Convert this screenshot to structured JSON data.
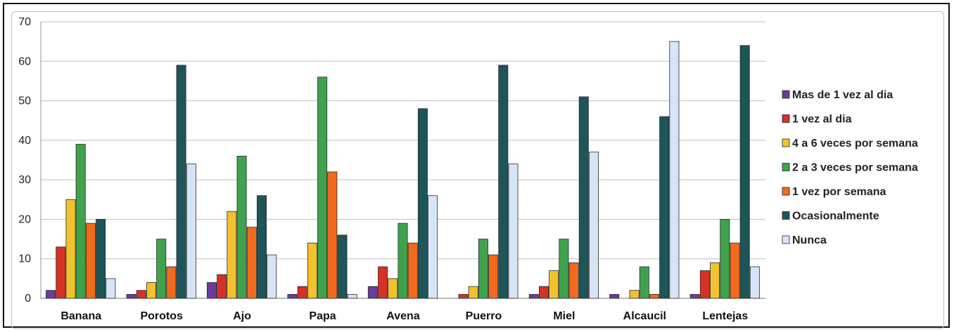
{
  "chart_data": {
    "type": "bar",
    "categories": [
      "Banana",
      "Porotos",
      "Ajo",
      "Papa",
      "Avena",
      "Puerro",
      "Miel",
      "Alcaucil",
      "Lentejas"
    ],
    "series": [
      {
        "name": "Mas de 1 vez al dia",
        "color": "#6a3d9a",
        "values": [
          2,
          1,
          4,
          1,
          3,
          0,
          1,
          1,
          1
        ]
      },
      {
        "name": "1 vez al dia",
        "color": "#d73027",
        "values": [
          13,
          2,
          6,
          3,
          8,
          1,
          3,
          0,
          7
        ]
      },
      {
        "name": "4 a 6 veces por semana",
        "color": "#f2c12e",
        "values": [
          25,
          4,
          22,
          14,
          5,
          3,
          7,
          2,
          9
        ]
      },
      {
        "name": "2 a 3 veces por semana",
        "color": "#3fa34d",
        "values": [
          39,
          15,
          36,
          56,
          19,
          15,
          15,
          8,
          20
        ]
      },
      {
        "name": "1 vez por semana",
        "color": "#f26a1b",
        "values": [
          19,
          8,
          18,
          32,
          14,
          11,
          9,
          1,
          14
        ]
      },
      {
        "name": "Ocasionalmente",
        "color": "#1e5559",
        "values": [
          20,
          59,
          26,
          16,
          48,
          59,
          51,
          46,
          64
        ]
      },
      {
        "name": "Nunca",
        "color": "#d6e4f7",
        "values": [
          5,
          34,
          11,
          1,
          26,
          34,
          37,
          65,
          8
        ]
      }
    ],
    "ylim": [
      0,
      70
    ],
    "yticks": [
      0,
      10,
      20,
      30,
      40,
      50,
      60,
      70
    ],
    "grid": true,
    "legend_position": "right",
    "title": "",
    "xlabel": "",
    "ylabel": ""
  }
}
